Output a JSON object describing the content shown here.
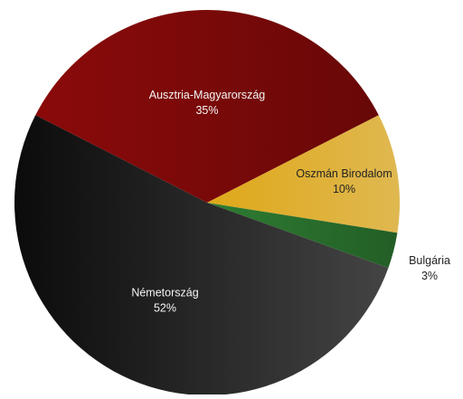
{
  "chart_data": {
    "type": "pie",
    "categories": [
      "Ausztria-Magyarország",
      "Oszmán Birodalom",
      "Bulgária",
      "Németország"
    ],
    "values": [
      35,
      10,
      3,
      52
    ],
    "labels": [
      {
        "name": "Ausztria-Magyarország",
        "value": "35%"
      },
      {
        "name": "Oszmán Birodalom",
        "value": "10%"
      },
      {
        "name": "Bulgária",
        "value": "3%"
      },
      {
        "name": "Németország",
        "value": "52%"
      }
    ],
    "colors": [
      "#8b0a0a",
      "#d4a017",
      "#2e7d32",
      "#1a1a1a"
    ],
    "label_colors": [
      "#f5f5f5",
      "#222222",
      "#222222",
      "#f5f5f5"
    ],
    "legend": "none"
  }
}
